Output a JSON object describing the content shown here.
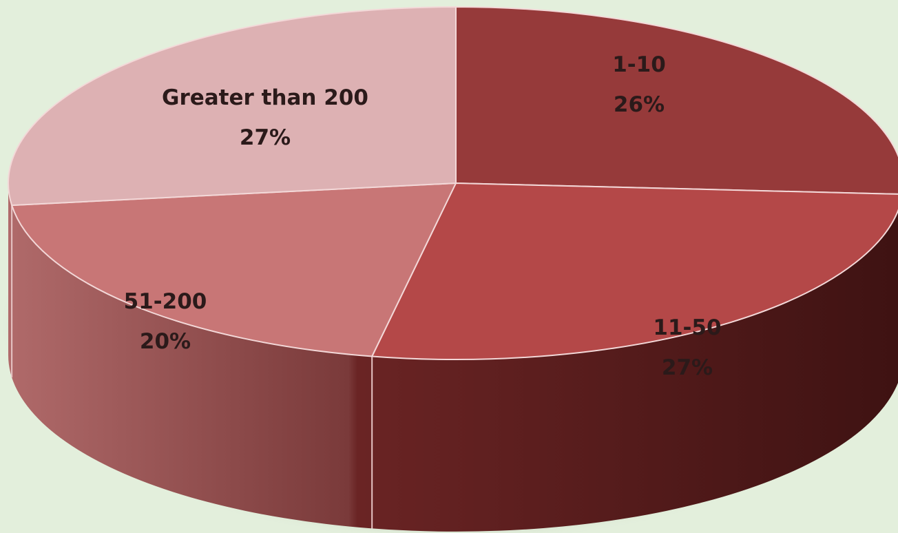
{
  "chart_data": {
    "type": "pie",
    "title": "",
    "categories": [
      "1-10",
      "11-50",
      "51-200",
      "Greater than 200"
    ],
    "values": [
      26,
      27,
      20,
      27
    ],
    "labels": [
      "26%",
      "27%",
      "20%",
      "27%"
    ],
    "legend": "none",
    "colors": [
      "#963a3a",
      "#b44848",
      "#c87676",
      "#ddb1b3"
    ],
    "side_colors": [
      "#6e2525",
      "#4e1818",
      "#8a4848",
      "#a77a7a"
    ]
  }
}
